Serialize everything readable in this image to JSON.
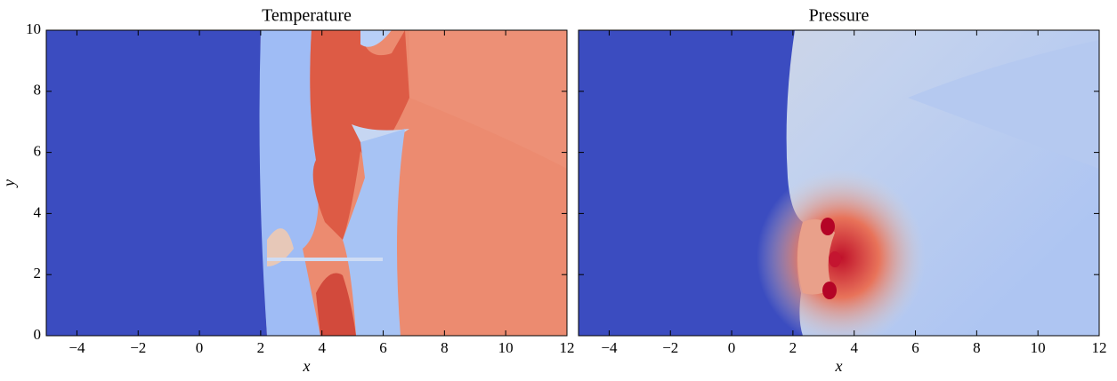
{
  "chart_data": [
    {
      "type": "heatmap",
      "title": "Temperature",
      "xlabel": "x",
      "ylabel": "y",
      "xlim": [
        -5,
        12
      ],
      "ylim": [
        0,
        10
      ],
      "xticks": [
        {
          "value": -4,
          "label": "−4"
        },
        {
          "value": -2,
          "label": "−2"
        },
        0,
        2,
        4,
        6,
        8,
        10,
        12
      ],
      "yticks": [
        0,
        2,
        4,
        6,
        8,
        10
      ]
    },
    {
      "type": "heatmap",
      "title": "Pressure",
      "xlabel": "x",
      "xlim": [
        -5,
        12
      ],
      "ylim": [
        0,
        10
      ],
      "xticks": [
        {
          "value": -4,
          "label": "−4"
        },
        {
          "value": -2,
          "label": "−2"
        },
        0,
        2,
        4,
        6,
        8,
        10,
        12
      ],
      "yticks": [
        0,
        2,
        4,
        6,
        8,
        10
      ]
    }
  ]
}
